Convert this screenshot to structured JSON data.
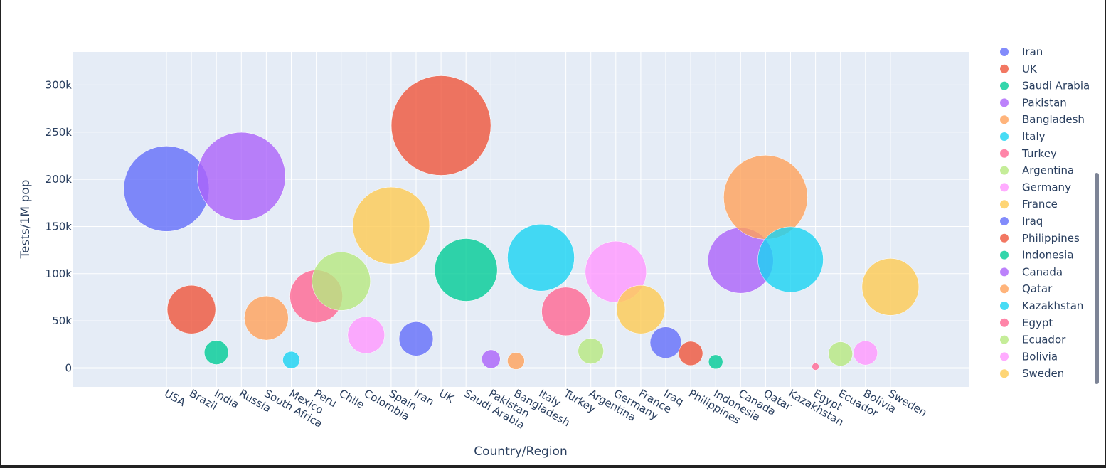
{
  "chart_data": {
    "type": "scatter",
    "mode": "bubble",
    "xlabel": "Country/Region",
    "ylabel": "Tests/1M pop",
    "ylim": [
      -20000,
      335000
    ],
    "yticks": [
      0,
      50000,
      100000,
      150000,
      200000,
      250000,
      300000
    ],
    "ytick_labels": [
      "0",
      "50k",
      "100k",
      "150k",
      "200k",
      "250k",
      "300k"
    ],
    "grid": true,
    "legend_position": "right",
    "colors": [
      "#636efa",
      "#EF553B",
      "#00cc96",
      "#ab63fa",
      "#FFA15A",
      "#19d3f3",
      "#FF6692",
      "#B6E880",
      "#FF97FF",
      "#FECB52"
    ],
    "series": [
      {
        "name": "USA",
        "x": "USA",
        "y": 190000,
        "size": 60,
        "color": "#636efa"
      },
      {
        "name": "Brazil",
        "x": "Brazil",
        "y": 62000,
        "size": 34,
        "color": "#EF553B"
      },
      {
        "name": "India",
        "x": "India",
        "y": 16500,
        "size": 17,
        "color": "#00cc96"
      },
      {
        "name": "Russia",
        "x": "Russia",
        "y": 203000,
        "size": 62,
        "color": "#ab63fa"
      },
      {
        "name": "South Africa",
        "x": "South Africa",
        "y": 53000,
        "size": 31,
        "color": "#FFA15A"
      },
      {
        "name": "Mexico",
        "x": "Mexico",
        "y": 8500,
        "size": 12,
        "color": "#19d3f3"
      },
      {
        "name": "Peru",
        "x": "Peru",
        "y": 76000,
        "size": 37,
        "color": "#FF6692"
      },
      {
        "name": "Chile",
        "x": "Chile",
        "y": 92000,
        "size": 41,
        "color": "#B6E880"
      },
      {
        "name": "Colombia",
        "x": "Colombia",
        "y": 35000,
        "size": 26,
        "color": "#FF97FF"
      },
      {
        "name": "Spain",
        "x": "Spain",
        "y": 151000,
        "size": 54,
        "color": "#FECB52"
      },
      {
        "name": "Iran",
        "x": "Iran",
        "y": 31000,
        "size": 24,
        "color": "#636efa"
      },
      {
        "name": "UK",
        "x": "UK",
        "y": 257000,
        "size": 70,
        "color": "#EF553B"
      },
      {
        "name": "Saudi Arabia",
        "x": "Saudi Arabia",
        "y": 104000,
        "size": 44,
        "color": "#00cc96"
      },
      {
        "name": "Pakistan",
        "x": "Pakistan",
        "y": 9500,
        "size": 13,
        "color": "#ab63fa"
      },
      {
        "name": "Bangladesh",
        "x": "Bangladesh",
        "y": 7500,
        "size": 12,
        "color": "#FFA15A"
      },
      {
        "name": "Italy",
        "x": "Italy",
        "y": 117000,
        "size": 47,
        "color": "#19d3f3"
      },
      {
        "name": "Turkey",
        "x": "Turkey",
        "y": 60000,
        "size": 34,
        "color": "#FF6692"
      },
      {
        "name": "Argentina",
        "x": "Argentina",
        "y": 18000,
        "size": 18,
        "color": "#B6E880"
      },
      {
        "name": "Germany",
        "x": "Germany",
        "y": 102000,
        "size": 43,
        "color": "#FF97FF"
      },
      {
        "name": "France",
        "x": "France",
        "y": 62000,
        "size": 34,
        "color": "#FECB52"
      },
      {
        "name": "Iraq",
        "x": "Iraq",
        "y": 27000,
        "size": 22,
        "color": "#636efa"
      },
      {
        "name": "Philippines",
        "x": "Philippines",
        "y": 15500,
        "size": 17,
        "color": "#EF553B"
      },
      {
        "name": "Indonesia",
        "x": "Indonesia",
        "y": 6500,
        "size": 10,
        "color": "#00cc96"
      },
      {
        "name": "Canada",
        "x": "Canada",
        "y": 114000,
        "size": 46,
        "color": "#ab63fa"
      },
      {
        "name": "Qatar",
        "x": "Qatar",
        "y": 181000,
        "size": 59,
        "color": "#FFA15A"
      },
      {
        "name": "Kazakhstan",
        "x": "Kazakhstan",
        "y": 115000,
        "size": 46,
        "color": "#19d3f3"
      },
      {
        "name": "Egypt",
        "x": "Egypt",
        "y": 1500,
        "size": 5,
        "color": "#FF6692"
      },
      {
        "name": "Ecuador",
        "x": "Ecuador",
        "y": 15000,
        "size": 17,
        "color": "#B6E880"
      },
      {
        "name": "Bolivia",
        "x": "Bolivia",
        "y": 16000,
        "size": 17,
        "color": "#FF97FF"
      },
      {
        "name": "Sweden",
        "x": "Sweden",
        "y": 86000,
        "size": 40,
        "color": "#FECB52"
      }
    ],
    "legend_items": [
      {
        "name": "Iran",
        "color": "#636efa"
      },
      {
        "name": "UK",
        "color": "#EF553B"
      },
      {
        "name": "Saudi Arabia",
        "color": "#00cc96"
      },
      {
        "name": "Pakistan",
        "color": "#ab63fa"
      },
      {
        "name": "Bangladesh",
        "color": "#FFA15A"
      },
      {
        "name": "Italy",
        "color": "#19d3f3"
      },
      {
        "name": "Turkey",
        "color": "#FF6692"
      },
      {
        "name": "Argentina",
        "color": "#B6E880"
      },
      {
        "name": "Germany",
        "color": "#FF97FF"
      },
      {
        "name": "France",
        "color": "#FECB52"
      },
      {
        "name": "Iraq",
        "color": "#636efa"
      },
      {
        "name": "Philippines",
        "color": "#EF553B"
      },
      {
        "name": "Indonesia",
        "color": "#00cc96"
      },
      {
        "name": "Canada",
        "color": "#ab63fa"
      },
      {
        "name": "Qatar",
        "color": "#FFA15A"
      },
      {
        "name": "Kazakhstan",
        "color": "#19d3f3"
      },
      {
        "name": "Egypt",
        "color": "#FF6692"
      },
      {
        "name": "Ecuador",
        "color": "#B6E880"
      },
      {
        "name": "Bolivia",
        "color": "#FF97FF"
      },
      {
        "name": "Sweden",
        "color": "#FECB52"
      }
    ]
  }
}
